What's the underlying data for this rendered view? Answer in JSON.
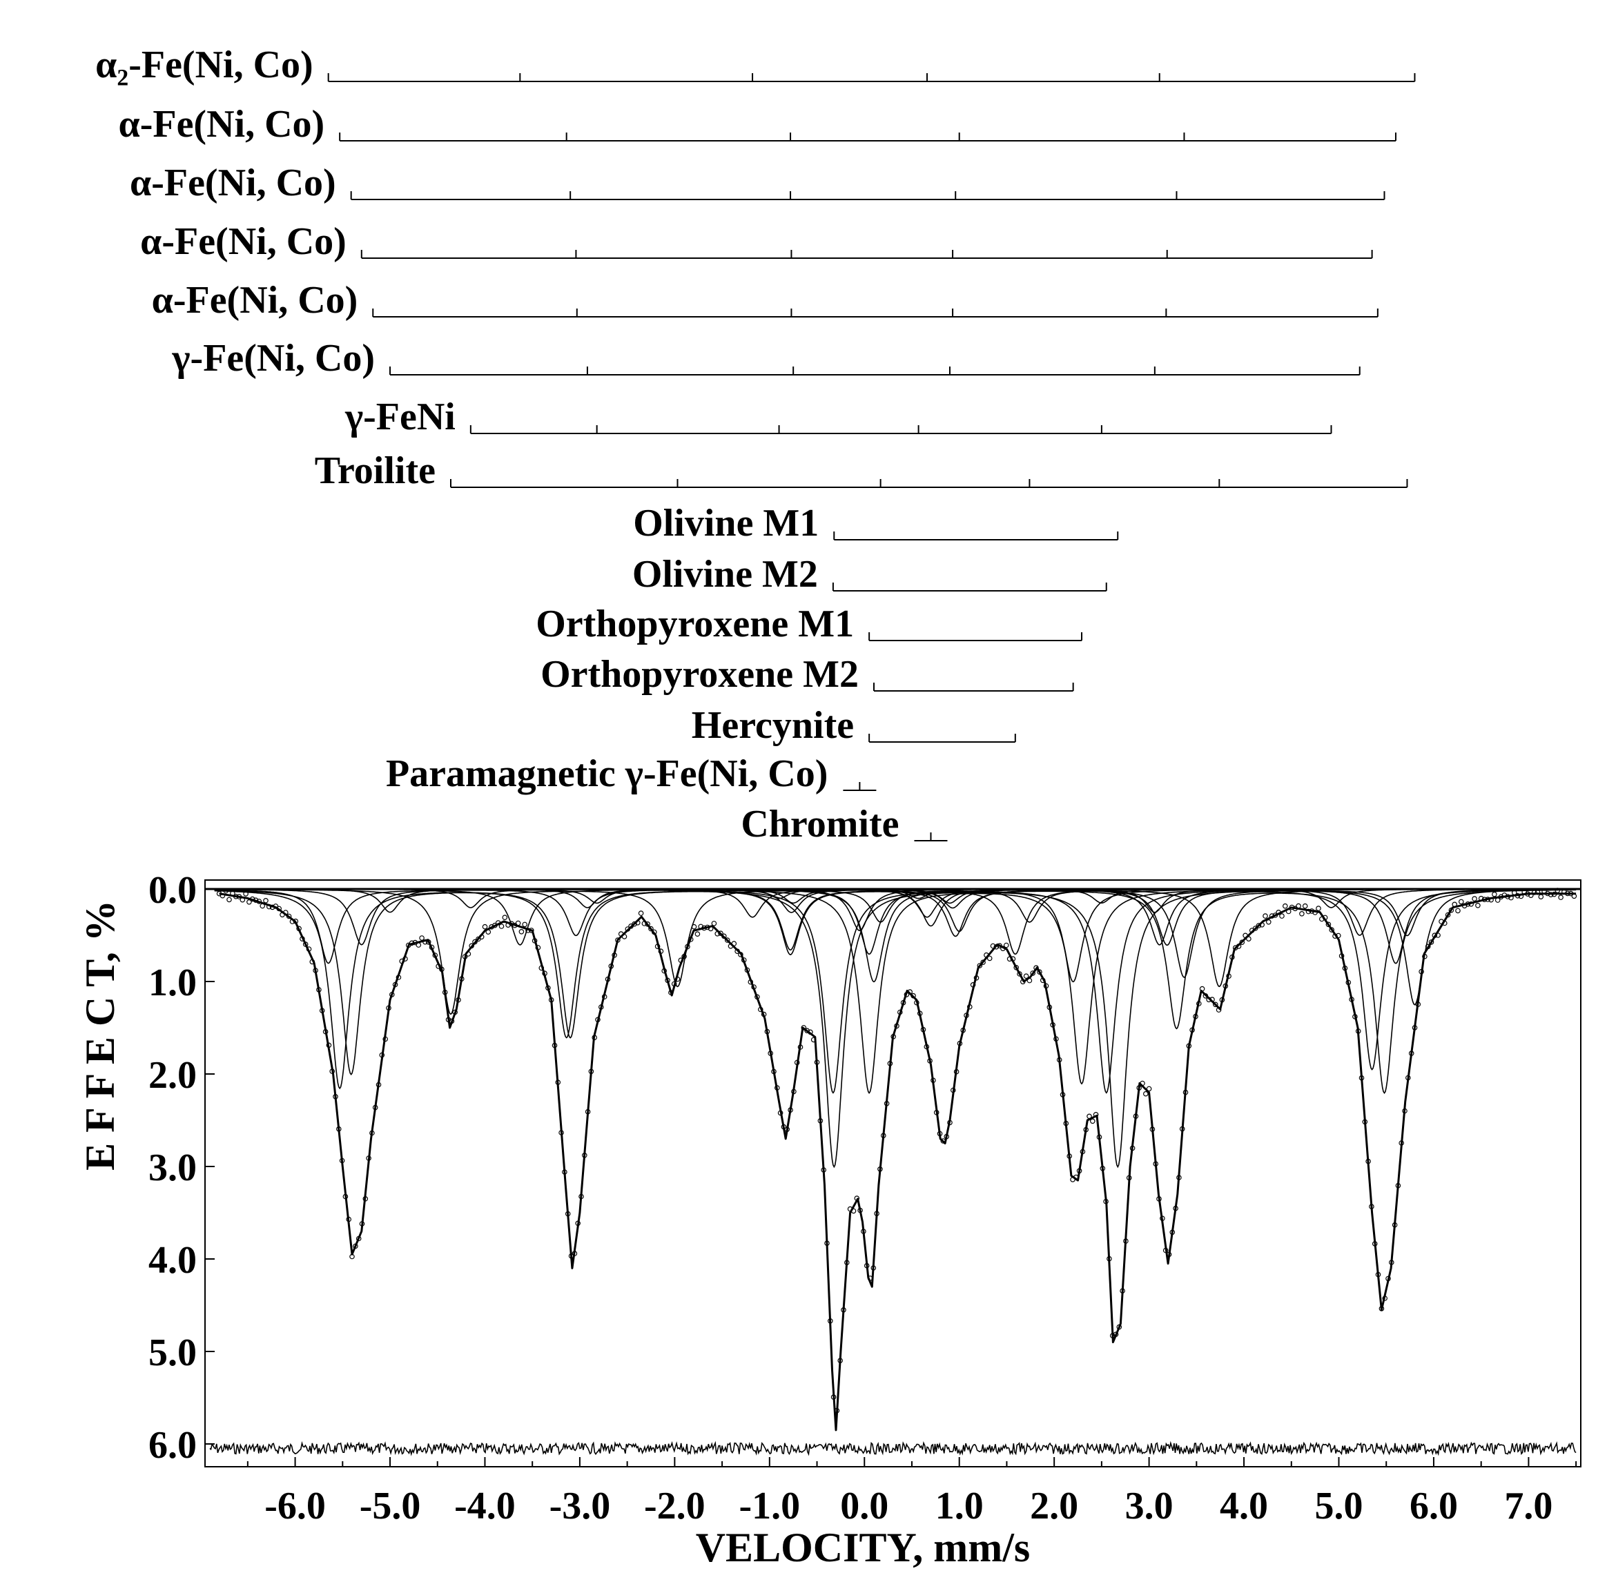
{
  "chart_data": {
    "type": "line",
    "xlabel": "VELOCITY,  mm/s",
    "ylabel": "E F F E C T,  %",
    "xlim": [
      -6.95,
      7.55
    ],
    "ylim": [
      0.0,
      6.2
    ],
    "y_axis_inverted": true,
    "grid": false,
    "x_ticks": [
      -6.0,
      -5.0,
      -4.0,
      -3.0,
      -2.0,
      -1.0,
      0.0,
      1.0,
      2.0,
      3.0,
      4.0,
      5.0,
      6.0,
      7.0
    ],
    "x_tick_labels": [
      "-6.0",
      "-5.0",
      "-4.0",
      "-3.0",
      "-2.0",
      "-1.0",
      "0.0",
      "1.0",
      "2.0",
      "3.0",
      "4.0",
      "5.0",
      "6.0",
      "7.0"
    ],
    "y_ticks": [
      0.0,
      1.0,
      2.0,
      3.0,
      4.0,
      5.0,
      6.0
    ],
    "y_tick_labels": [
      "0.0",
      "1.0",
      "2.0",
      "3.0",
      "4.0",
      "5.0",
      "6.0"
    ],
    "phases": [
      {
        "label": "α₂-Fe(Ni, Co)",
        "lines": [
          -5.65,
          -3.63,
          -1.18,
          0.66,
          3.11,
          5.8
        ]
      },
      {
        "label": "α-Fe(Ni, Co)",
        "lines": [
          -5.53,
          -3.14,
          -0.78,
          1.0,
          3.37,
          5.6
        ]
      },
      {
        "label": "α-Fe(Ni, Co)",
        "lines": [
          -5.41,
          -3.1,
          -0.78,
          0.96,
          3.29,
          5.48
        ]
      },
      {
        "label": "α-Fe(Ni, Co)",
        "lines": [
          -5.3,
          -3.04,
          -0.77,
          0.93,
          3.19,
          5.35
        ]
      },
      {
        "label": "α-Fe(Ni, Co)",
        "lines": [
          -5.18,
          -3.03,
          -0.77,
          0.93,
          3.18,
          5.41
        ]
      },
      {
        "label": "γ-Fe(Ni, Co)",
        "lines": [
          -5.0,
          -2.92,
          -0.75,
          0.9,
          3.06,
          5.22
        ]
      },
      {
        "label": "γ-FeNi",
        "lines": [
          -4.15,
          -2.82,
          -0.9,
          0.57,
          2.5,
          4.92
        ]
      },
      {
        "label": "Troilite",
        "lines": [
          -4.36,
          -1.97,
          0.17,
          1.74,
          3.74,
          5.72
        ]
      },
      {
        "label": "Olivine M1",
        "lines": [
          -0.32,
          2.67
        ]
      },
      {
        "label": "Olivine M2",
        "lines": [
          -0.33,
          2.55
        ]
      },
      {
        "label": "Orthopyroxene M1",
        "lines": [
          0.05,
          2.29
        ]
      },
      {
        "label": "Orthopyroxene M2",
        "lines": [
          0.1,
          2.2
        ]
      },
      {
        "label": "Hercynite",
        "lines": [
          0.05,
          1.59
        ]
      },
      {
        "label": "Paramagnetic γ-Fe(Ni, Co)",
        "lines": [
          -0.05
        ]
      },
      {
        "label": "Chromite",
        "lines": [
          0.7
        ]
      }
    ],
    "series": [
      {
        "role": "fit_envelope",
        "x": [
          -6.8,
          -6.5,
          -6.2,
          -6.0,
          -5.8,
          -5.6,
          -5.5,
          -5.4,
          -5.3,
          -5.2,
          -5.0,
          -4.8,
          -4.6,
          -4.45,
          -4.37,
          -4.3,
          -4.2,
          -4.0,
          -3.8,
          -3.5,
          -3.3,
          -3.15,
          -3.08,
          -3.0,
          -2.85,
          -2.6,
          -2.35,
          -2.2,
          -2.1,
          -2.03,
          -1.95,
          -1.8,
          -1.6,
          -1.3,
          -1.05,
          -0.9,
          -0.83,
          -0.75,
          -0.65,
          -0.52,
          -0.42,
          -0.34,
          -0.3,
          -0.25,
          -0.15,
          -0.07,
          -0.02,
          0.04,
          0.08,
          0.15,
          0.3,
          0.45,
          0.55,
          0.7,
          0.8,
          0.85,
          0.9,
          1.0,
          1.2,
          1.4,
          1.5,
          1.6,
          1.68,
          1.75,
          1.82,
          1.9,
          2.05,
          2.18,
          2.25,
          2.35,
          2.45,
          2.55,
          2.62,
          2.7,
          2.8,
          2.9,
          3.0,
          3.1,
          3.2,
          3.3,
          3.42,
          3.55,
          3.65,
          3.75,
          3.9,
          4.2,
          4.5,
          4.8,
          5.0,
          5.2,
          5.35,
          5.45,
          5.55,
          5.7,
          5.9,
          6.2,
          6.6,
          7.0,
          7.5
        ],
        "y": [
          0.05,
          0.1,
          0.2,
          0.35,
          0.8,
          2.0,
          3.0,
          3.95,
          3.7,
          2.7,
          1.2,
          0.6,
          0.55,
          0.9,
          1.5,
          1.3,
          0.7,
          0.45,
          0.35,
          0.45,
          1.2,
          3.2,
          4.1,
          3.5,
          1.6,
          0.55,
          0.3,
          0.5,
          0.9,
          1.15,
          0.85,
          0.45,
          0.4,
          0.7,
          1.4,
          2.3,
          2.7,
          2.2,
          1.5,
          1.6,
          3.2,
          5.2,
          5.85,
          5.0,
          3.5,
          3.35,
          3.6,
          4.2,
          4.3,
          3.2,
          1.6,
          1.1,
          1.2,
          1.9,
          2.7,
          2.75,
          2.5,
          1.7,
          0.85,
          0.6,
          0.65,
          0.85,
          1.0,
          0.95,
          0.85,
          1.0,
          1.8,
          3.1,
          3.15,
          2.5,
          2.45,
          3.4,
          4.9,
          4.7,
          3.0,
          2.1,
          2.2,
          3.3,
          4.05,
          3.3,
          1.7,
          1.1,
          1.2,
          1.3,
          0.65,
          0.35,
          0.2,
          0.25,
          0.55,
          1.5,
          3.5,
          4.55,
          4.1,
          2.3,
          0.7,
          0.2,
          0.1,
          0.05,
          0.05
        ]
      },
      {
        "role": "subspectrum",
        "peaks": [
          [
            -5.65,
            0.8
          ],
          [
            -3.63,
            0.6
          ],
          [
            -1.18,
            0.3
          ],
          [
            0.66,
            0.3
          ],
          [
            3.11,
            0.6
          ],
          [
            5.8,
            1.25
          ]
        ]
      },
      {
        "role": "subspectrum",
        "peaks": [
          [
            -5.53,
            2.15
          ],
          [
            -3.14,
            1.6
          ],
          [
            -0.78,
            0.65
          ],
          [
            1.0,
            0.45
          ],
          [
            3.37,
            0.95
          ],
          [
            5.6,
            0.8
          ]
        ]
      },
      {
        "role": "subspectrum",
        "peaks": [
          [
            -5.41,
            2.0
          ],
          [
            -3.1,
            1.6
          ],
          [
            -0.78,
            0.7
          ],
          [
            0.96,
            0.5
          ],
          [
            3.29,
            1.5
          ],
          [
            5.48,
            2.2
          ]
        ]
      },
      {
        "role": "subspectrum",
        "peaks": [
          [
            -5.3,
            0.6
          ],
          [
            -3.04,
            0.5
          ],
          [
            -0.77,
            0.25
          ],
          [
            0.93,
            0.2
          ],
          [
            3.19,
            0.6
          ],
          [
            5.35,
            1.95
          ]
        ]
      },
      {
        "role": "subspectrum",
        "peaks": [
          [
            -5.0,
            0.25
          ],
          [
            -2.92,
            0.2
          ],
          [
            -0.75,
            0.15
          ],
          [
            0.9,
            0.15
          ],
          [
            3.06,
            0.25
          ],
          [
            5.22,
            0.5
          ]
        ]
      },
      {
        "role": "subspectrum",
        "peaks": [
          [
            -4.15,
            0.2
          ],
          [
            -2.82,
            0.15
          ],
          [
            -0.9,
            0.1
          ],
          [
            0.57,
            0.1
          ],
          [
            2.5,
            0.15
          ],
          [
            4.92,
            0.2
          ]
        ]
      },
      {
        "role": "subspectrum",
        "peaks": [
          [
            -4.36,
            1.35
          ],
          [
            -1.97,
            1.05
          ],
          [
            0.17,
            0.35
          ],
          [
            1.74,
            0.35
          ],
          [
            3.74,
            1.05
          ],
          [
            5.72,
            0.5
          ]
        ]
      },
      {
        "role": "subspectrum",
        "peaks": [
          [
            -0.32,
            3.0
          ],
          [
            2.67,
            3.0
          ]
        ]
      },
      {
        "role": "subspectrum",
        "peaks": [
          [
            -0.33,
            2.2
          ],
          [
            2.55,
            2.2
          ]
        ]
      },
      {
        "role": "subspectrum",
        "peaks": [
          [
            0.05,
            2.2
          ],
          [
            2.29,
            2.1
          ]
        ]
      },
      {
        "role": "subspectrum",
        "peaks": [
          [
            0.1,
            1.0
          ],
          [
            2.2,
            1.0
          ]
        ]
      },
      {
        "role": "subspectrum",
        "peaks": [
          [
            0.05,
            0.7
          ],
          [
            1.59,
            0.7
          ]
        ]
      },
      {
        "role": "subspectrum",
        "peaks": [
          [
            -0.05,
            0.45
          ]
        ]
      },
      {
        "role": "subspectrum",
        "peaks": [
          [
            0.7,
            0.4
          ]
        ]
      }
    ],
    "residual_baseline": 6.05
  }
}
